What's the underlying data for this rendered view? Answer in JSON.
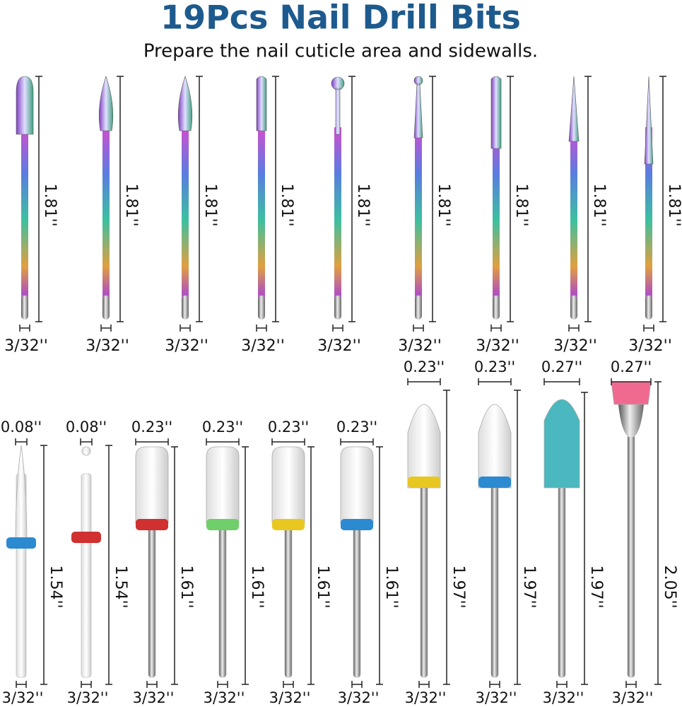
{
  "header": {
    "title": "19Pcs Nail Drill Bits",
    "subtitle": "Prepare the nail cuticle area and sidewalls."
  },
  "top_row": [
    {
      "length": "1.81''",
      "shank": "3/32''"
    },
    {
      "length": "1.81''",
      "shank": "3/32''"
    },
    {
      "length": "1.81''",
      "shank": "3/32''"
    },
    {
      "length": "1.81''",
      "shank": "3/32''"
    },
    {
      "length": "1.81''",
      "shank": "3/32''"
    },
    {
      "length": "1.81''",
      "shank": "3/32''"
    },
    {
      "length": "1.81''",
      "shank": "3/32''"
    },
    {
      "length": "1.81''",
      "shank": "3/32''"
    },
    {
      "length": "1.81''",
      "shank": "3/32''"
    }
  ],
  "bottom_row": [
    {
      "width": "0.08''",
      "length": "1.54''",
      "shank": "3/32''"
    },
    {
      "width": "0.08''",
      "length": "1.54''",
      "shank": "3/32''"
    },
    {
      "width": "0.23''",
      "length": "1.61''",
      "shank": "3/32''"
    },
    {
      "width": "0.23''",
      "length": "1.61''",
      "shank": "3/32''"
    },
    {
      "width": "0.23''",
      "length": "1.61''",
      "shank": "3/32''"
    },
    {
      "width": "0.23''",
      "length": "1.61''",
      "shank": "3/32''"
    },
    {
      "width": "0.23''",
      "length": "1.97''",
      "shank": "3/32''"
    },
    {
      "width": "0.23''",
      "length": "1.97''",
      "shank": "3/32''"
    },
    {
      "width": "0.27''",
      "length": "1.97''",
      "shank": "3/32''"
    },
    {
      "width": "0.27''",
      "length": "2.05''",
      "shank": "3/32''"
    }
  ]
}
